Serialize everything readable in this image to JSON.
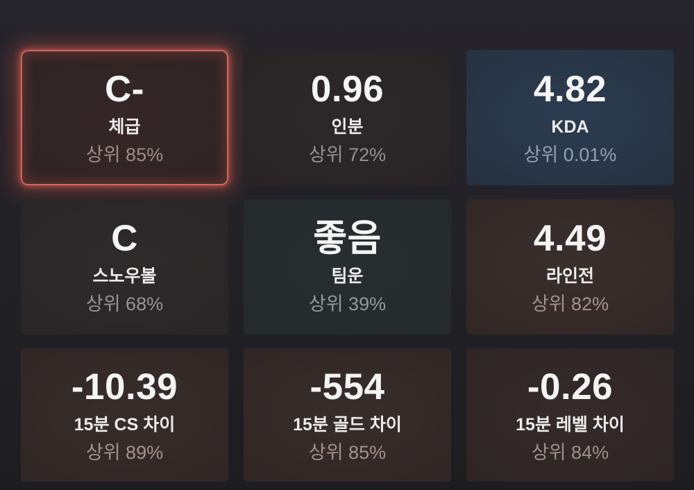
{
  "page": {
    "background_top": "#26252b",
    "background_bottom": "#1d1d20",
    "accent_glow": "#bc625c"
  },
  "cards": [
    {
      "id": "physique",
      "value": "C-",
      "label": "체급",
      "percentile": "상위 85%",
      "highlighted": true,
      "bg_center": "#352728",
      "bg_edge": "#2a2021",
      "pct_color": "#a18b88"
    },
    {
      "id": "carry-share",
      "value": "0.96",
      "label": "인분",
      "percentile": "상위 72%",
      "highlighted": false,
      "bg_center": "#2d282a",
      "bg_edge": "#242022",
      "pct_color": "#949092"
    },
    {
      "id": "kda",
      "value": "4.82",
      "label": "KDA",
      "percentile": "상위 0.01%",
      "highlighted": false,
      "bg_center": "#2c3c50",
      "bg_edge": "#202a35",
      "pct_color": "#93a0ad"
    },
    {
      "id": "snowball",
      "value": "C",
      "label": "스노우볼",
      "percentile": "상위 68%",
      "highlighted": false,
      "bg_center": "#2f2a2b",
      "bg_edge": "#252122",
      "pct_color": "#999394"
    },
    {
      "id": "team-luck",
      "value": "좋음",
      "label": "팀운",
      "percentile": "상위 39%",
      "highlighted": false,
      "bg_center": "#282e30",
      "bg_edge": "#222627",
      "pct_color": "#939a9c"
    },
    {
      "id": "laning",
      "value": "4.49",
      "label": "라인전",
      "percentile": "상위 82%",
      "highlighted": false,
      "bg_center": "#3a2f2d",
      "bg_edge": "#292120",
      "pct_color": "#a39290"
    },
    {
      "id": "cs-diff-15min",
      "value": "-10.39",
      "label": "15분 CS 차이",
      "percentile": "상위 89%",
      "highlighted": false,
      "bg_center": "#372d2b",
      "bg_edge": "#2a2120",
      "pct_color": "#a5938f"
    },
    {
      "id": "gold-diff-15min",
      "value": "-554",
      "label": "15분 골드 차이",
      "percentile": "상위 85%",
      "highlighted": false,
      "bg_center": "#372d2b",
      "bg_edge": "#2a2120",
      "pct_color": "#a3928e"
    },
    {
      "id": "level-diff-15min",
      "value": "-0.26",
      "label": "15분 레벨 차이",
      "percentile": "상위 84%",
      "highlighted": false,
      "bg_center": "#342b2a",
      "bg_edge": "#281f1f",
      "pct_color": "#9f908c"
    }
  ]
}
